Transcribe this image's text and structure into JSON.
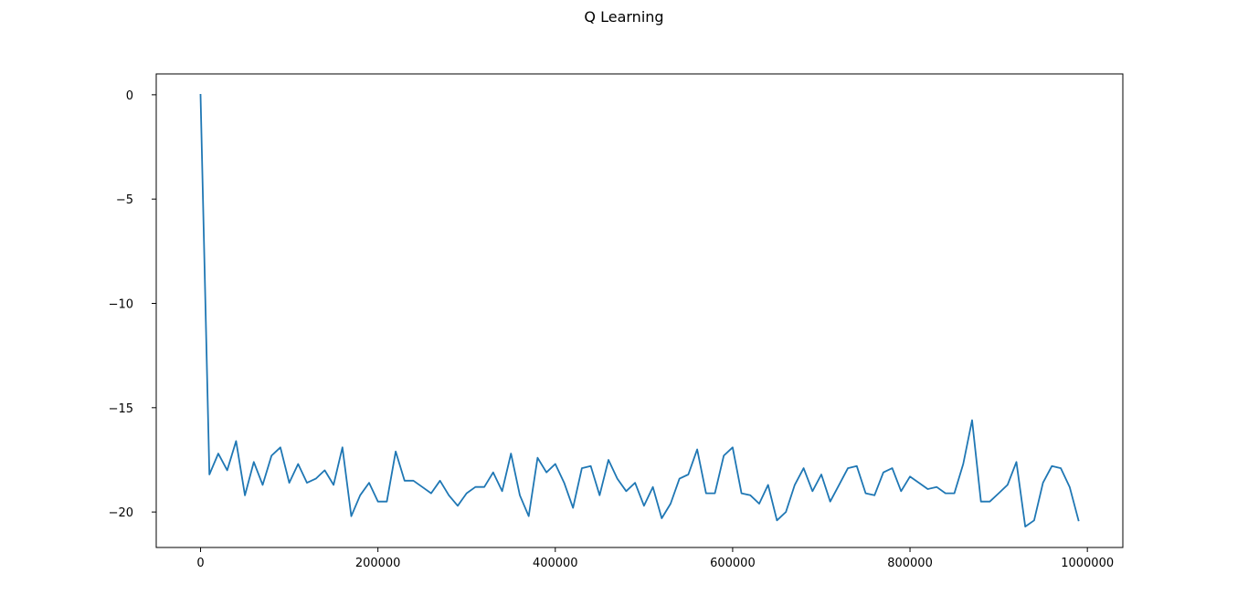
{
  "chart_data": {
    "type": "line",
    "title": "Q Learning",
    "xlabel": "",
    "ylabel": "",
    "xlim": [
      -50000,
      1040000
    ],
    "ylim": [
      -21.7,
      1.0
    ],
    "x_ticks": [
      0,
      200000,
      400000,
      600000,
      800000,
      1000000
    ],
    "x_tick_labels": [
      "0",
      "200000",
      "400000",
      "600000",
      "800000",
      "1000000"
    ],
    "y_ticks": [
      0,
      -5,
      -10,
      -15,
      -20
    ],
    "y_tick_labels": [
      "0",
      "−5",
      "−10",
      "−15",
      "−20"
    ],
    "grid": false,
    "legend": "none",
    "series": [
      {
        "color": "#1f77b4",
        "x": [
          0,
          10000,
          20000,
          30000,
          40000,
          50000,
          60000,
          70000,
          80000,
          90000,
          100000,
          110000,
          120000,
          130000,
          140000,
          150000,
          160000,
          170000,
          180000,
          190000,
          200000,
          210000,
          220000,
          230000,
          240000,
          250000,
          260000,
          270000,
          280000,
          290000,
          300000,
          310000,
          320000,
          330000,
          340000,
          350000,
          360000,
          370000,
          380000,
          390000,
          400000,
          410000,
          420000,
          430000,
          440000,
          450000,
          460000,
          470000,
          480000,
          490000,
          500000,
          510000,
          520000,
          530000,
          540000,
          550000,
          560000,
          570000,
          580000,
          590000,
          600000,
          610000,
          620000,
          630000,
          640000,
          650000,
          660000,
          670000,
          680000,
          690000,
          700000,
          710000,
          720000,
          730000,
          740000,
          750000,
          760000,
          770000,
          780000,
          790000,
          800000,
          810000,
          820000,
          830000,
          840000,
          850000,
          860000,
          870000,
          880000,
          890000,
          900000,
          910000,
          920000,
          930000,
          940000,
          950000,
          960000,
          970000,
          980000,
          990000
        ],
        "y": [
          0.0,
          -18.2,
          -17.2,
          -18.0,
          -16.6,
          -19.2,
          -17.6,
          -18.7,
          -17.3,
          -16.9,
          -18.6,
          -17.7,
          -18.6,
          -18.4,
          -18.0,
          -18.7,
          -16.9,
          -20.2,
          -19.2,
          -18.6,
          -19.5,
          -19.5,
          -17.1,
          -18.5,
          -18.5,
          -18.8,
          -19.1,
          -18.5,
          -19.2,
          -19.7,
          -19.1,
          -18.8,
          -18.8,
          -18.1,
          -19.0,
          -17.2,
          -19.2,
          -20.2,
          -17.4,
          -18.1,
          -17.7,
          -18.6,
          -19.8,
          -17.9,
          -17.8,
          -19.2,
          -17.5,
          -18.4,
          -19.0,
          -18.6,
          -19.7,
          -18.8,
          -20.3,
          -19.6,
          -18.4,
          -18.2,
          -17.0,
          -19.1,
          -19.1,
          -17.3,
          -16.9,
          -19.1,
          -19.2,
          -19.6,
          -18.7,
          -20.4,
          -20.0,
          -18.7,
          -17.9,
          -19.0,
          -18.2,
          -19.5,
          -18.7,
          -17.9,
          -17.8,
          -19.1,
          -19.2,
          -18.1,
          -17.9,
          -19.0,
          -18.3,
          -18.6,
          -18.9,
          -18.8,
          -19.1,
          -19.1,
          -17.7,
          -15.6,
          -19.5,
          -19.5,
          -19.1,
          -18.7,
          -17.6,
          -20.7,
          -20.4,
          -18.6,
          -17.8,
          -17.9,
          -18.8,
          -20.4
        ]
      }
    ]
  }
}
